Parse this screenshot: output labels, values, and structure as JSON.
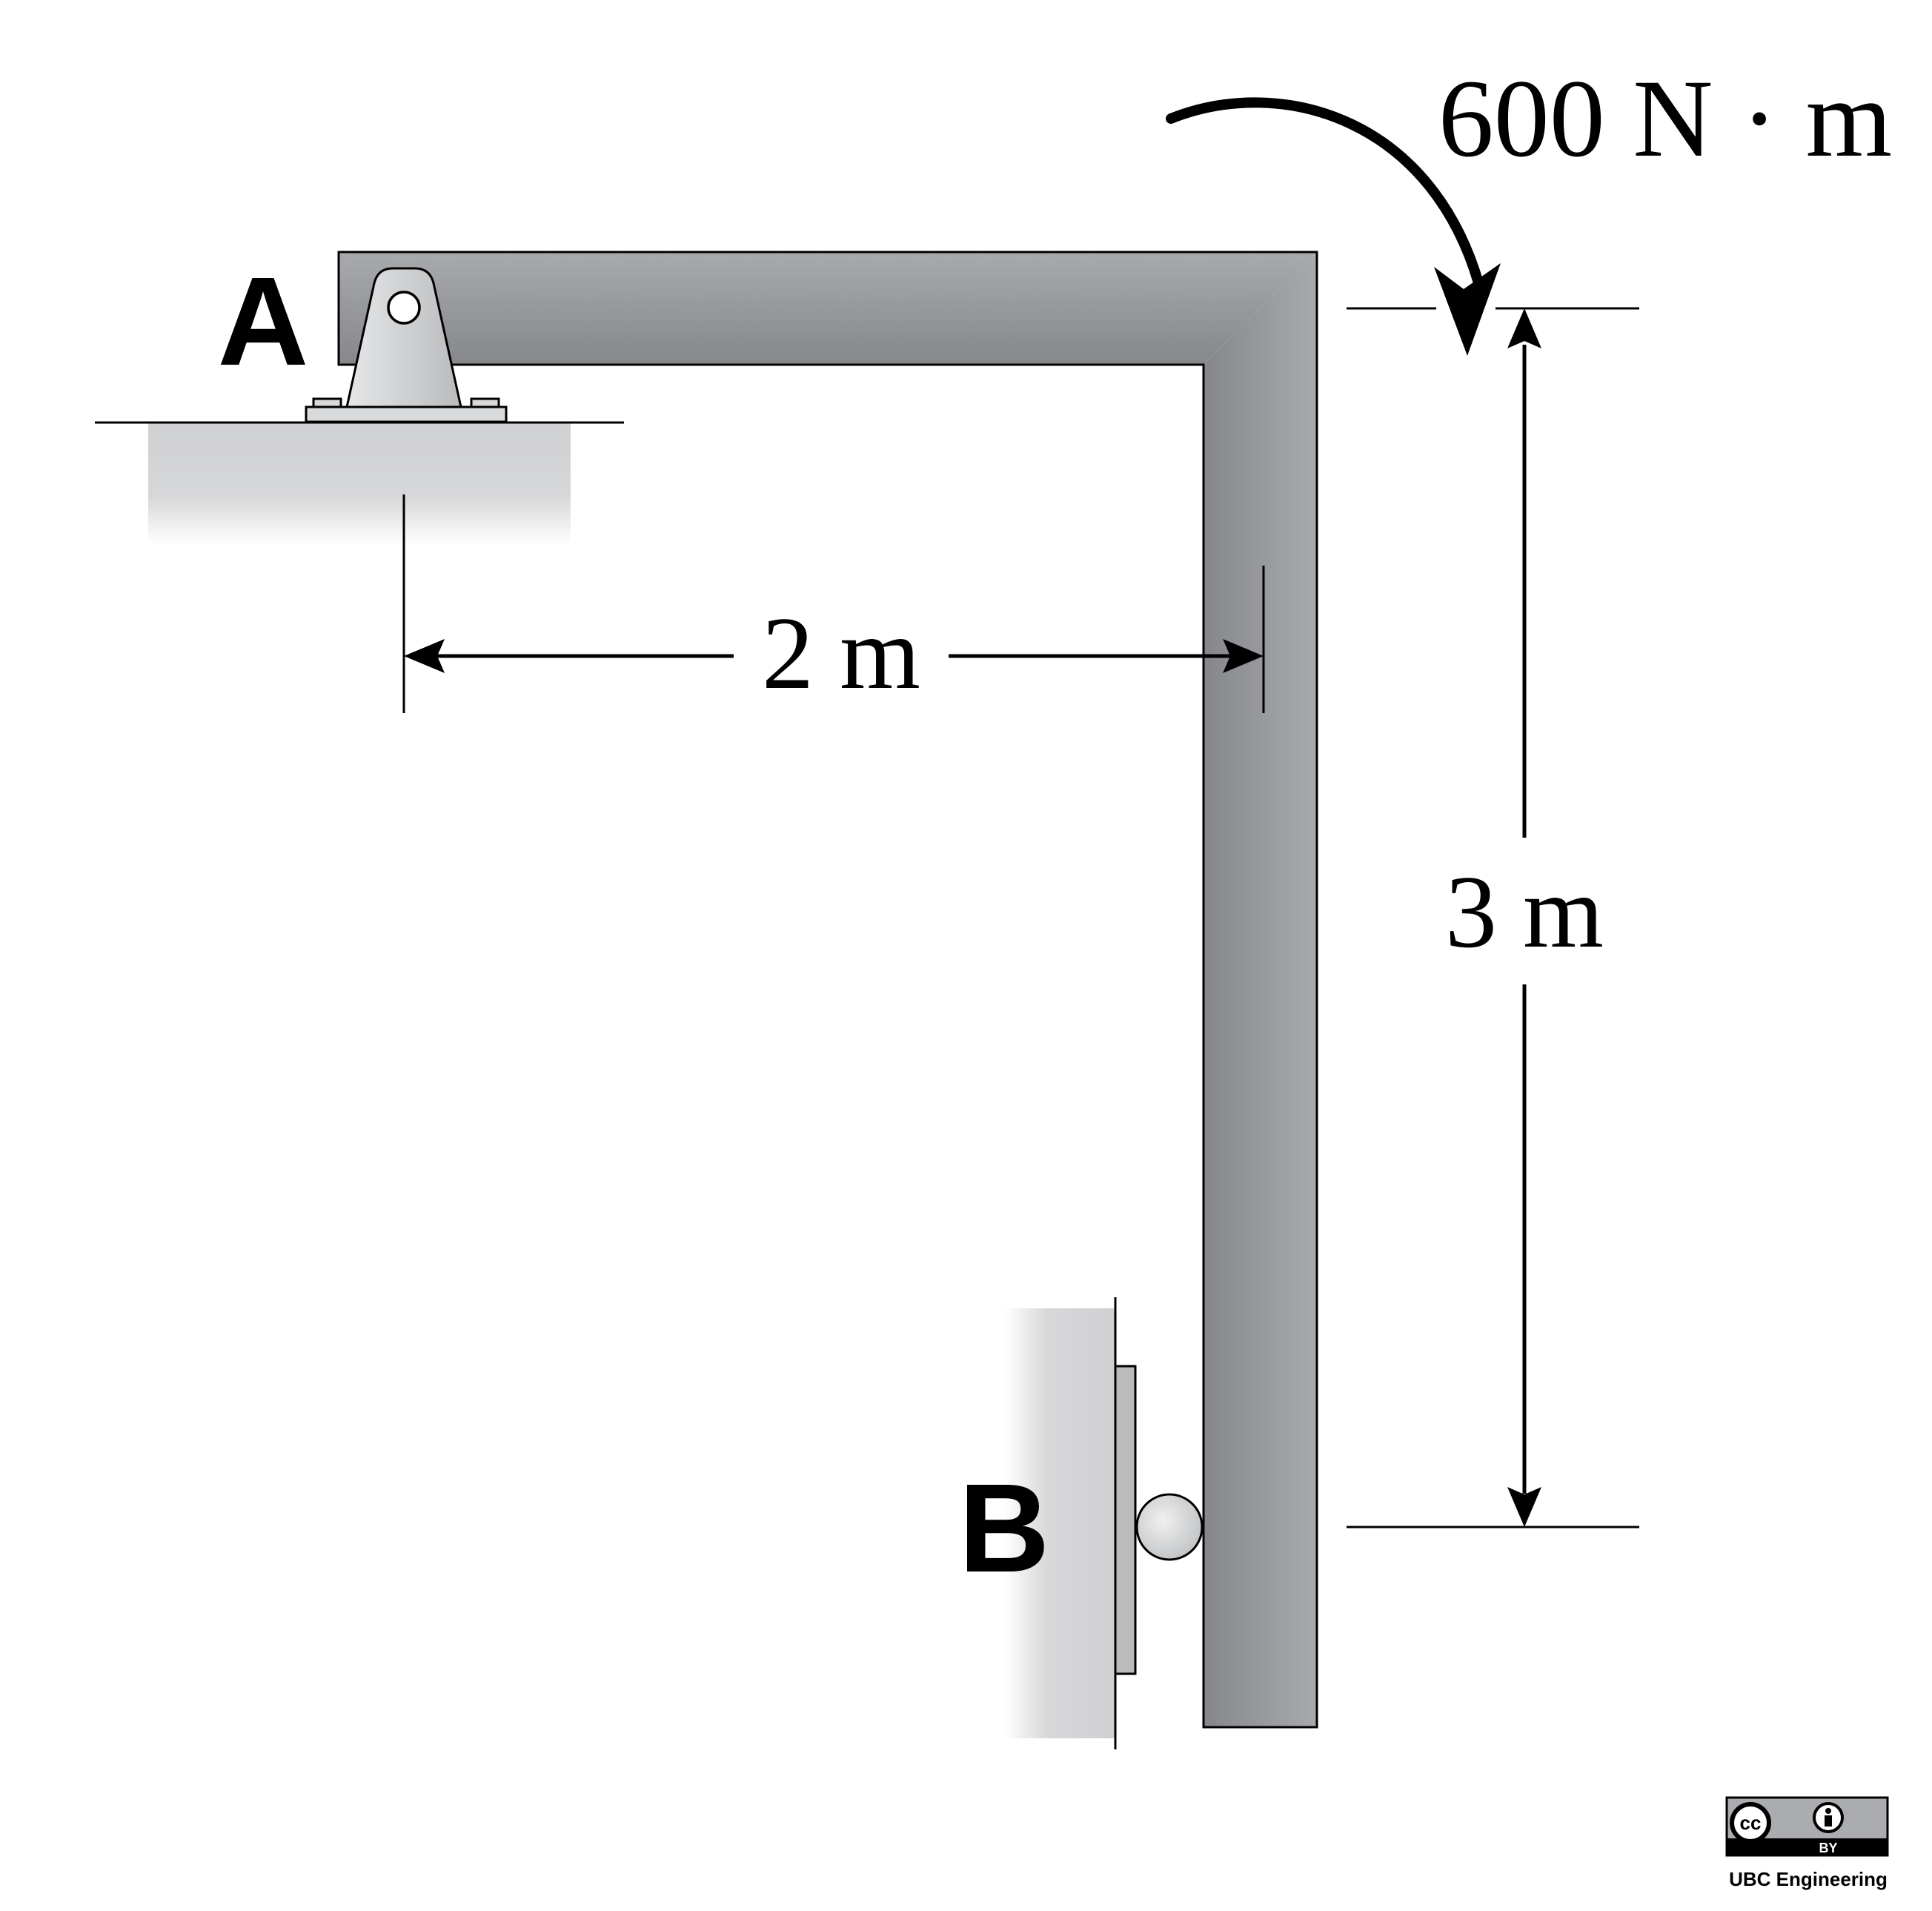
{
  "labels": {
    "support_a": "A",
    "support_b": "B",
    "moment": "600 N · m",
    "horizontal_dim": "2 m",
    "vertical_dim": "3 m"
  },
  "license": {
    "cc": "cc",
    "by": "BY",
    "credit": "UBC Engineering"
  },
  "colors": {
    "beam_light": "#a7a9ac",
    "beam_dark": "#85878a",
    "ground": "#d4d5d6",
    "line": "#000000"
  }
}
